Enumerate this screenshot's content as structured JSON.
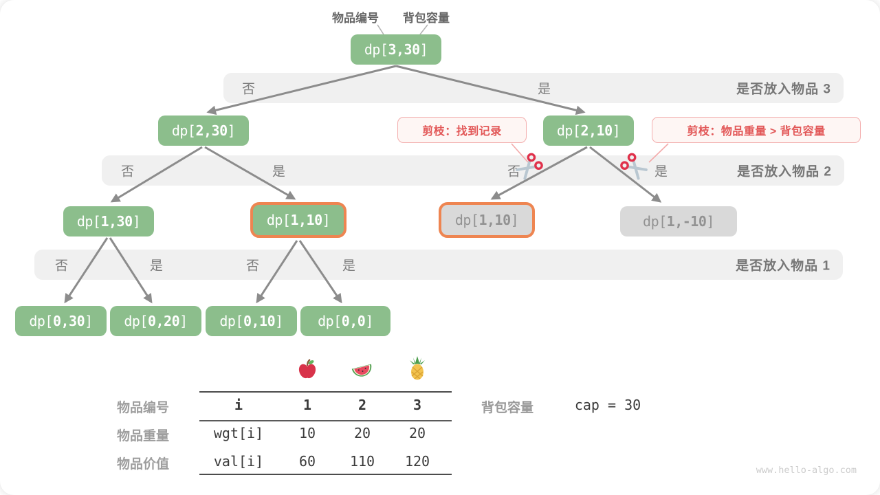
{
  "legend": {
    "item_index": "物品编号",
    "capacity": "背包容量"
  },
  "tree": {
    "nodes": [
      {
        "id": "dp-3-30",
        "label": "dp[3,30]"
      },
      {
        "id": "dp-2-30",
        "label": "dp[2,30]"
      },
      {
        "id": "dp-2-10",
        "label": "dp[2,10]"
      },
      {
        "id": "dp-1-30",
        "label": "dp[1,30]"
      },
      {
        "id": "dp-1-10-hit",
        "label": "dp[1,10]"
      },
      {
        "id": "dp-1-10-pruned",
        "label": "dp[1,10]"
      },
      {
        "id": "dp-1-neg10",
        "label": "dp[1,-10]"
      },
      {
        "id": "dp-0-30",
        "label": "dp[0,30]"
      },
      {
        "id": "dp-0-20",
        "label": "dp[0,20]"
      },
      {
        "id": "dp-0-10",
        "label": "dp[0,10]"
      },
      {
        "id": "dp-0-0",
        "label": "dp[0,0]"
      }
    ],
    "bands": [
      {
        "label": "是否放入物品 3",
        "decisions": [
          "否",
          "是"
        ]
      },
      {
        "label": "是否放入物品 2",
        "decisions": [
          "否",
          "是",
          "否",
          "是"
        ]
      },
      {
        "label": "是否放入物品 1",
        "decisions": [
          "否",
          "是",
          "否",
          "是"
        ]
      }
    ],
    "callouts": [
      {
        "text": "剪枝：找到记录"
      },
      {
        "text": "剪枝：物品重量 > 背包容量"
      }
    ]
  },
  "table": {
    "row_labels": [
      "物品编号",
      "物品重量",
      "物品价值"
    ],
    "fruits": [
      "apple",
      "watermelon",
      "pineapple"
    ],
    "header": {
      "key": "i",
      "cols": [
        "1",
        "2",
        "3"
      ]
    },
    "wgt": {
      "key": "wgt[i]",
      "vals": [
        "10",
        "20",
        "20"
      ]
    },
    "val": {
      "key": "val[i]",
      "vals": [
        "60",
        "110",
        "120"
      ]
    }
  },
  "capacity": {
    "label": "背包容量",
    "value": "cap = 30"
  },
  "page": {
    "watermark": "www.hello-algo.com"
  },
  "colors": {
    "node_green": "#8cbe8c",
    "node_gray": "#d9d9d9",
    "highlight_orange": "#ee8551",
    "prune_red": "#e25757",
    "arrow_gray": "#8c8c8c"
  }
}
